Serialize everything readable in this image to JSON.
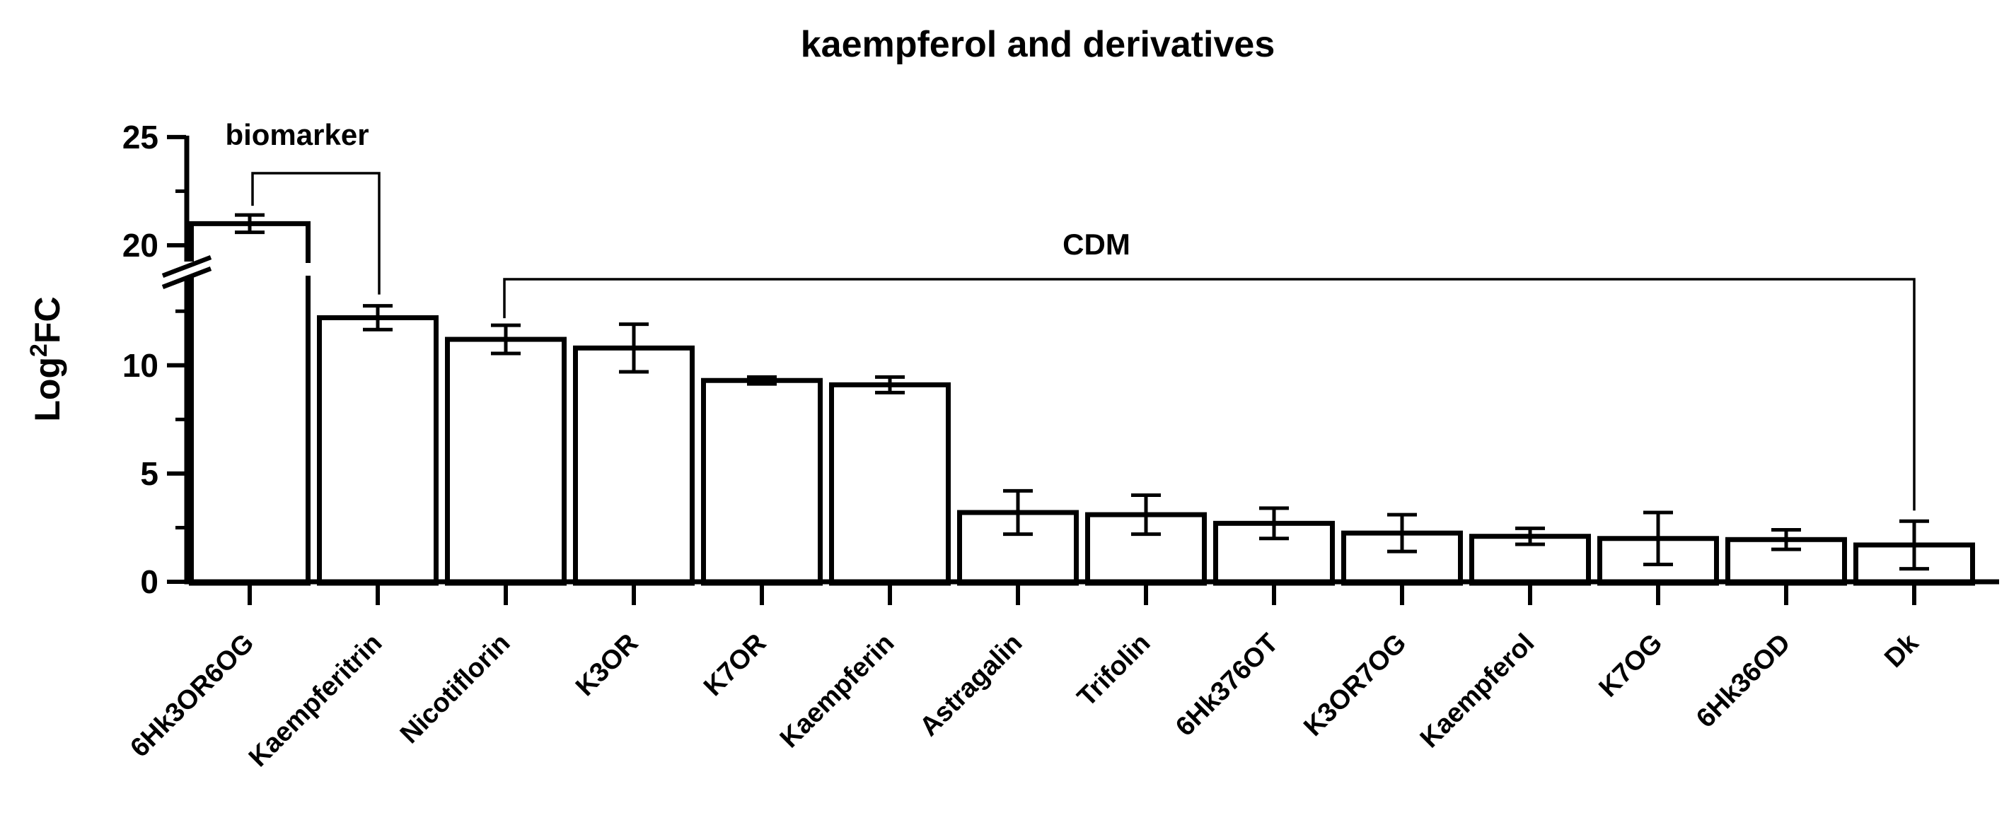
{
  "chart_data": {
    "type": "bar",
    "title": "kaempferol and derivatives",
    "ylabel": {
      "base": "Log",
      "sup": "2",
      "rest": "FC"
    },
    "xlabel": "",
    "categories": [
      "6Hk3OR6OG",
      "Kaempferitrin",
      "Nicotiflorin",
      "K3OR",
      "K7OR",
      "Kaempferin",
      "Astragalin",
      "Trifolin",
      "6Hk376OT",
      "K3OR7OG",
      "Kaempferol",
      "K7OG",
      "6Hk36OD",
      "Dk"
    ],
    "values": [
      21.0,
      12.2,
      11.2,
      10.8,
      9.3,
      9.1,
      3.2,
      3.1,
      2.7,
      2.25,
      2.1,
      2.0,
      1.95,
      1.7
    ],
    "errors": [
      0.4,
      0.55,
      0.65,
      1.1,
      0.16,
      0.36,
      1.0,
      0.9,
      0.7,
      0.85,
      0.37,
      1.2,
      0.45,
      1.1
    ],
    "ylim": [
      0,
      25
    ],
    "yticks_major": [
      0,
      5,
      10,
      20,
      25
    ],
    "yticks_minor": [
      2.5,
      7.5,
      12.5,
      22.5
    ],
    "axis_break": {
      "from": 14,
      "to": 19
    },
    "grid": "off",
    "legend": "none",
    "bar_fill_color": "#ffffff",
    "line_color": "#000000",
    "annotations": [
      {
        "type": "bracket",
        "label": "biomarker",
        "from_category_index": 0,
        "to_category_index": 1
      },
      {
        "type": "bracket",
        "label": "CDM",
        "from_category_index": 2,
        "to_category_index": 13
      }
    ]
  }
}
